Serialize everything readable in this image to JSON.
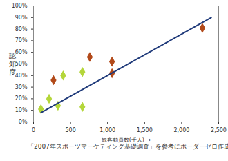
{
  "chart_data": {
    "type": "scatter",
    "xlabel": "観客動員数(千人)",
    "ylabel": "認知度",
    "caption": "「2007年スポーツマーケティング基礎調査」を参考にボーダーゼロ作成",
    "series": [
      {
        "color": "#b24a1a",
        "marker": "diamond",
        "x": [
          270,
          760,
          1060,
          1060,
          2280
        ],
        "values": [
          36,
          56,
          52,
          42,
          81
        ]
      },
      {
        "color": "#b4d63a",
        "marker": "diamond",
        "x": [
          100,
          210,
          330,
          400,
          660,
          660
        ],
        "values": [
          11,
          20,
          14,
          40,
          43,
          13
        ]
      },
      {
        "type": "line",
        "color": "#1f3a7a",
        "line_style": "solid",
        "x": [
          100,
          2400
        ],
        "values": [
          8,
          90
        ]
      }
    ],
    "xlim": [
      0,
      2500
    ],
    "xticks": [
      0,
      500,
      {
        "value": 1000,
        "label": "1,000"
      },
      {
        "value": 1500,
        "label": "1,500"
      },
      {
        "value": 2000,
        "label": "2,000"
      },
      {
        "value": 2500,
        "label": "2,500"
      }
    ],
    "ylim": [
      0,
      100
    ],
    "yticks": [
      {
        "value": 0,
        "label": "0%"
      },
      {
        "value": 10,
        "label": "10%"
      },
      {
        "value": 20,
        "label": "20%"
      },
      {
        "value": 30,
        "label": "30%"
      },
      {
        "value": 40,
        "label": "40%"
      },
      {
        "value": 50,
        "label": "50%"
      },
      {
        "value": 60,
        "label": "60%"
      },
      {
        "value": 70,
        "label": "70%"
      },
      {
        "value": 80,
        "label": "80%"
      },
      {
        "value": 90,
        "label": "90%"
      },
      {
        "value": 100,
        "label": "100%"
      }
    ],
    "grid": false
  }
}
